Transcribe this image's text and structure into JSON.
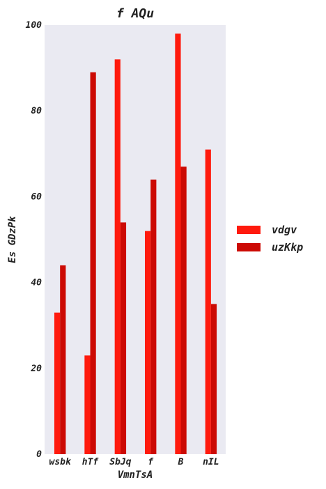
{
  "chart_data": {
    "type": "bar",
    "title": "f AQu",
    "xlabel": "VmnTsA",
    "ylabel": "Es GDzPk",
    "categories": [
      "wsbk",
      "hTf",
      "SbJq",
      "f",
      "B",
      "nIL"
    ],
    "series": [
      {
        "name": "vdgv",
        "color": "#ff1a0d",
        "values": [
          33,
          23,
          92,
          52,
          98,
          71
        ]
      },
      {
        "name": "uzKkp",
        "color": "#cc0a04",
        "values": [
          44,
          89,
          54,
          64,
          67,
          35
        ]
      }
    ],
    "ylim": [
      0,
      100
    ],
    "yticks": [
      0,
      20,
      40,
      60,
      80,
      100
    ],
    "grid": false,
    "legend": "right",
    "plot_background": "#eaeaf2"
  }
}
